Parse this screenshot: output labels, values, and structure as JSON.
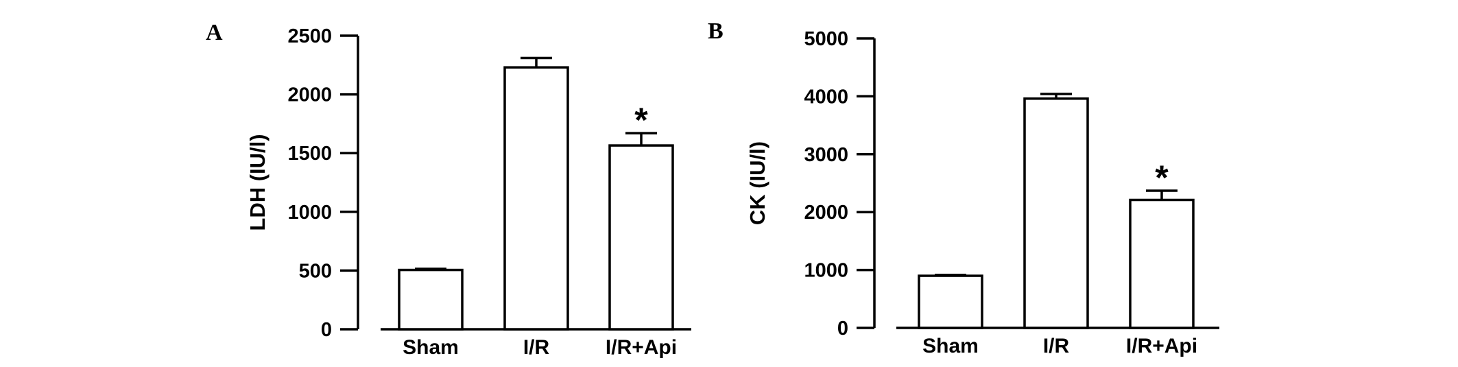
{
  "chart_data": [
    {
      "panel": "A",
      "type": "bar",
      "ylabel": "LDH (IU/l)",
      "ylim": [
        0,
        2500
      ],
      "yticks": [
        0,
        500,
        1000,
        1500,
        2000,
        2500
      ],
      "categories": [
        "Sham",
        "I/R",
        "I/R+Api"
      ],
      "values": [
        505,
        2230,
        1565
      ],
      "errors": [
        10,
        80,
        105
      ],
      "annotations": [
        "",
        "",
        "*"
      ]
    },
    {
      "panel": "B",
      "type": "bar",
      "ylabel": "CK (IU/l)",
      "ylim": [
        0,
        5000
      ],
      "yticks": [
        0,
        1000,
        2000,
        3000,
        4000,
        5000
      ],
      "categories": [
        "Sham",
        "I/R",
        "I/R+Api"
      ],
      "values": [
        900,
        3960,
        2210
      ],
      "errors": [
        15,
        80,
        160
      ],
      "annotations": [
        "",
        "",
        "*"
      ]
    }
  ]
}
